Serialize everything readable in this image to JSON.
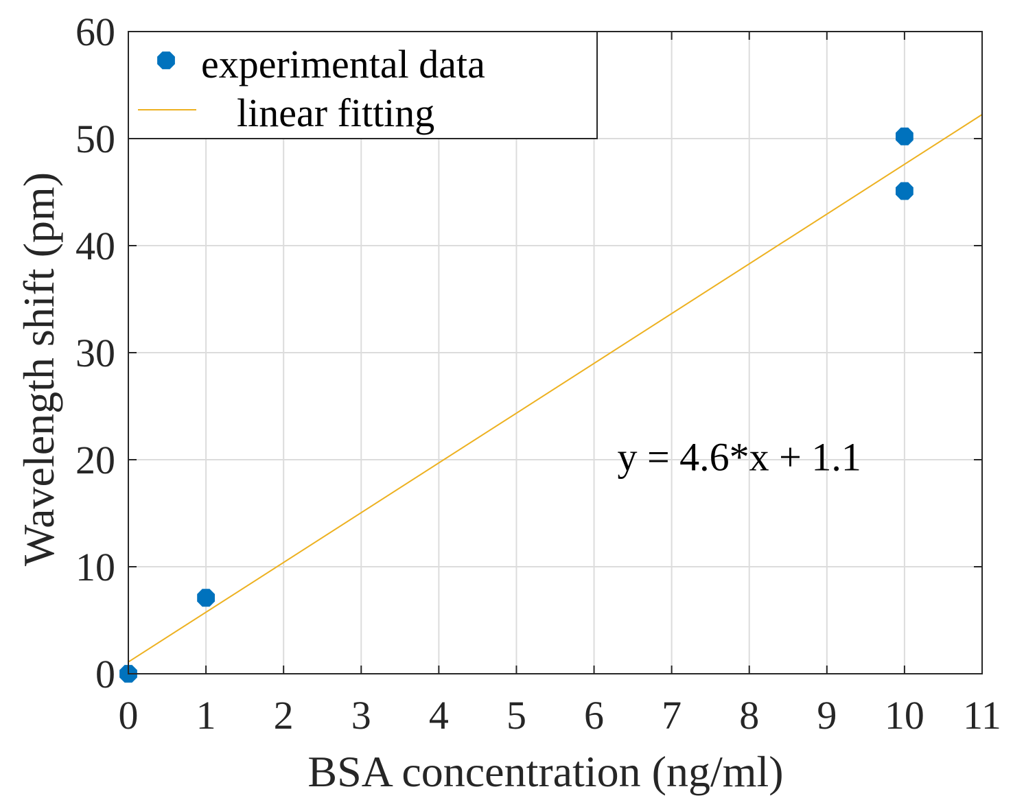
{
  "chart_data": {
    "type": "scatter",
    "title": "",
    "xlabel": "BSA concentration (ng/ml)",
    "ylabel": "Wavelength shift (pm)",
    "xlim": [
      0,
      11
    ],
    "ylim": [
      0,
      60
    ],
    "xticks": [
      0,
      1,
      2,
      3,
      4,
      5,
      6,
      7,
      8,
      9,
      10,
      11
    ],
    "yticks": [
      0,
      10,
      20,
      30,
      40,
      50,
      60
    ],
    "grid": true,
    "legend_position": "top-left",
    "series": [
      {
        "name": "experimental data",
        "kind": "scatter",
        "color": "#0072BD",
        "points": [
          {
            "x": 0,
            "y": 0
          },
          {
            "x": 1,
            "y": 7.1
          },
          {
            "x": 10,
            "y": 50.2
          },
          {
            "x": 10,
            "y": 45.1
          }
        ]
      },
      {
        "name": "linear fitting",
        "kind": "line",
        "color": "#EDB120",
        "slope": 4.65,
        "intercept": 1.1,
        "x_range": [
          0,
          11
        ]
      }
    ],
    "annotations": [
      {
        "text": "y = 4.6*x + 1.1",
        "x": 6.3,
        "y": 19
      }
    ]
  }
}
